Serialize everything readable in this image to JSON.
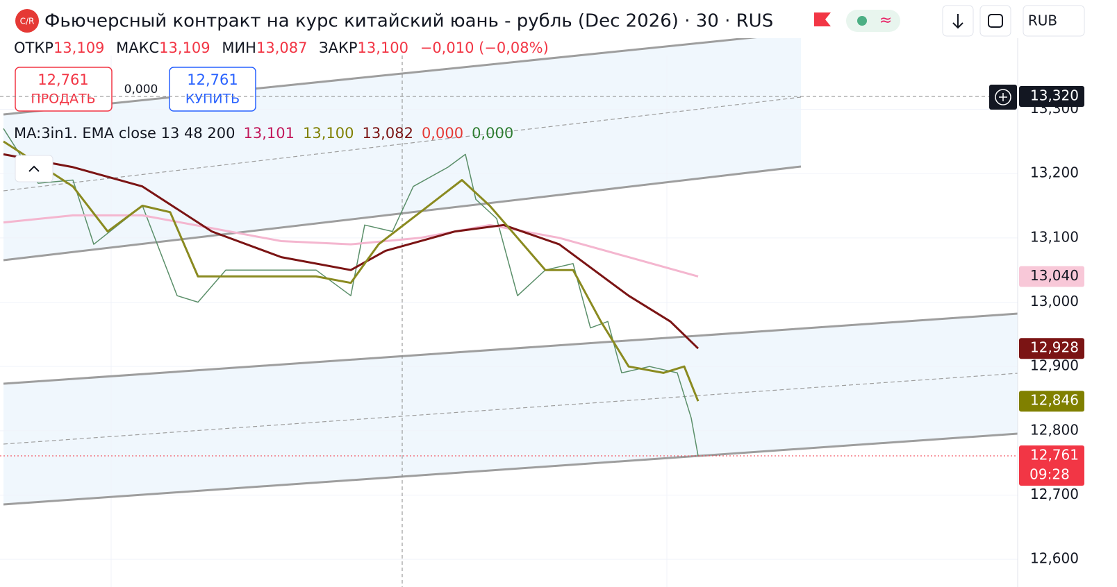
{
  "header": {
    "logo": "C/R",
    "title": "Фьючерсный контракт на курс китайский юань - рубль (Dec 2026) · 30 · RUS",
    "currency": "RUB"
  },
  "ohlc": {
    "open_label": "ОТКР",
    "open": "13,109",
    "high_label": "МАКС",
    "high": "13,109",
    "low_label": "МИН",
    "low": "13,087",
    "close_label": "ЗАКР",
    "close": "13,100",
    "change": "−0,010 (−0,08%)"
  },
  "trade": {
    "sell_price": "12,761",
    "sell_label": "ПРОДАТЬ",
    "spread": "0,000",
    "buy_price": "12,761",
    "buy_label": "КУПИТЬ"
  },
  "indicator": {
    "name": "MA:3in1. EMA close 13 48 200",
    "values": [
      "13,101",
      "13,100",
      "13,082",
      "0,000",
      "0,000"
    ],
    "colors": [
      "#c2185b",
      "#808000",
      "#7b1414",
      "#e53935",
      "#2e7d32"
    ]
  },
  "chart_data": {
    "type": "line",
    "xlim": [
      0,
      146
    ],
    "ylim": [
      12557,
      13470
    ],
    "yticks": [
      {
        "value": 12600,
        "label": "12,600"
      },
      {
        "value": 12700,
        "label": "12,700"
      },
      {
        "value": 12800,
        "label": "12,800"
      },
      {
        "value": 12900,
        "label": "12,900"
      },
      {
        "value": 13000,
        "label": "13,000"
      },
      {
        "value": 13100,
        "label": "13,100"
      },
      {
        "value": 13200,
        "label": "13,200"
      },
      {
        "value": 13300,
        "label": "13,300"
      }
    ],
    "grid": true,
    "series": [
      {
        "color": "#5b8f6a",
        "x": [
          0,
          5,
          10,
          13,
          20,
          25,
          28,
          32,
          40,
          45,
          50,
          52,
          56,
          59,
          64,
          66.5,
          68,
          71,
          74,
          78,
          82,
          84.5,
          87,
          89,
          93,
          97,
          99,
          100
        ],
        "values": [
          13270,
          13185,
          13190,
          13090,
          13150,
          13010,
          13000,
          13050,
          13050,
          13050,
          13010,
          13120,
          13110,
          13180,
          13210,
          13230,
          13160,
          13130,
          13010,
          13050,
          13060,
          12960,
          12970,
          12890,
          12900,
          12890,
          12820,
          12761
        ]
      },
      {
        "color": "#f4b6cf",
        "x": [
          0,
          10,
          20,
          30,
          40,
          50,
          60,
          70,
          80,
          90,
          100
        ],
        "values": [
          13124,
          13135,
          13135,
          13115,
          13095,
          13090,
          13100,
          13120,
          13100,
          13070,
          13040
        ]
      },
      {
        "color": "#7b1414",
        "x": [
          0,
          10,
          20,
          30,
          40,
          50,
          55,
          65,
          72,
          80,
          90,
          96,
          100
        ],
        "values": [
          13230,
          13210,
          13180,
          13110,
          13070,
          13050,
          13080,
          13110,
          13120,
          13090,
          13010,
          12970,
          12928
        ]
      },
      {
        "color": "#8a8a20",
        "x": [
          0,
          10,
          15,
          20,
          24,
          28,
          35,
          45,
          50,
          54,
          60,
          66,
          70,
          74,
          78,
          82,
          86,
          90,
          95,
          98,
          100
        ],
        "values": [
          13250,
          13180,
          13110,
          13150,
          13140,
          13040,
          13040,
          13040,
          13030,
          13090,
          13140,
          13190,
          13150,
          13100,
          13050,
          13050,
          12970,
          12900,
          12890,
          12900,
          12846
        ]
      }
    ],
    "badges": [
      {
        "value": 13320,
        "label": "13,320",
        "color": "#131722"
      },
      {
        "value": 13040,
        "label": "13,040",
        "color": "#f8c8d8"
      },
      {
        "value": 12928,
        "label": "12,928",
        "color": "#7b1414"
      },
      {
        "value": 12846,
        "label": "12,846",
        "color": "#808000"
      },
      {
        "value": 12761,
        "label": "12,761",
        "color": "#f23645",
        "countdown": "09:28"
      }
    ]
  }
}
